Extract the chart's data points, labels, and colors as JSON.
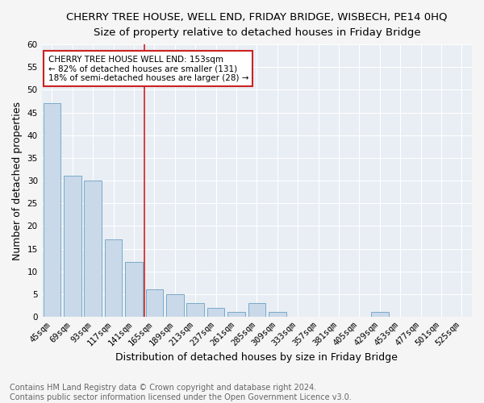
{
  "title": "CHERRY TREE HOUSE, WELL END, FRIDAY BRIDGE, WISBECH, PE14 0HQ",
  "subtitle": "Size of property relative to detached houses in Friday Bridge",
  "xlabel": "Distribution of detached houses by size in Friday Bridge",
  "ylabel": "Number of detached properties",
  "bar_labels": [
    "45sqm",
    "69sqm",
    "93sqm",
    "117sqm",
    "141sqm",
    "165sqm",
    "189sqm",
    "213sqm",
    "237sqm",
    "261sqm",
    "285sqm",
    "309sqm",
    "333sqm",
    "357sqm",
    "381sqm",
    "405sqm",
    "429sqm",
    "453sqm",
    "477sqm",
    "501sqm",
    "525sqm"
  ],
  "bar_values": [
    47,
    31,
    30,
    17,
    12,
    6,
    5,
    3,
    2,
    1,
    3,
    1,
    0,
    0,
    0,
    0,
    1,
    0,
    0,
    0,
    0
  ],
  "bar_color": "#c9d9ea",
  "bar_edge_color": "#7aaac8",
  "ylim": [
    0,
    60
  ],
  "yticks": [
    0,
    5,
    10,
    15,
    20,
    25,
    30,
    35,
    40,
    45,
    50,
    55,
    60
  ],
  "vline_x": 4.5,
  "vline_color": "#cc2222",
  "legend_title": "CHERRY TREE HOUSE WELL END: 153sqm",
  "legend_line1": "← 82% of detached houses are smaller (131)",
  "legend_line2": "18% of semi-detached houses are larger (28) →",
  "legend_box_color": "#cc2222",
  "footer_line1": "Contains HM Land Registry data © Crown copyright and database right 2024.",
  "footer_line2": "Contains public sector information licensed under the Open Government Licence v3.0.",
  "plot_bg_color": "#e8eef4",
  "fig_bg_color": "#f5f5f5",
  "grid_color": "#ffffff",
  "title_fontsize": 9.5,
  "subtitle_fontsize": 9.5,
  "axis_label_fontsize": 9,
  "tick_fontsize": 7.5,
  "footer_fontsize": 7
}
